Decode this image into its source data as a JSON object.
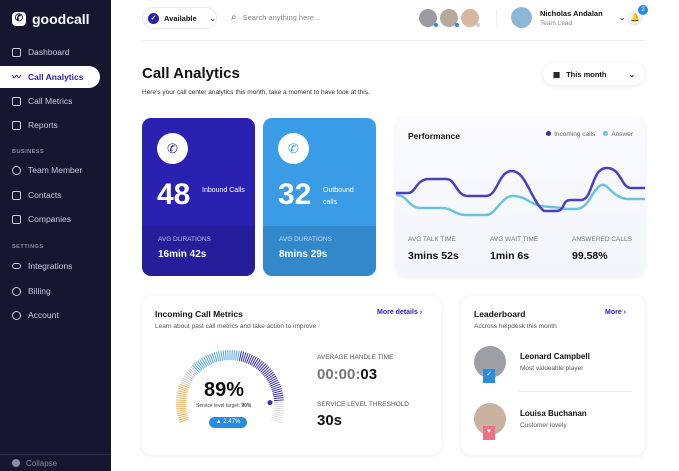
{
  "brand": {
    "name": "goodcall"
  },
  "sidebar": {
    "items": [
      {
        "label": "Dashboard"
      },
      {
        "label": "Call Analytics"
      },
      {
        "label": "Call Metrics"
      },
      {
        "label": "Reports"
      }
    ],
    "business_label": "BUSINESS",
    "business": [
      {
        "label": "Team Member"
      },
      {
        "label": "Contacts"
      },
      {
        "label": "Companies"
      }
    ],
    "settings_label": "SETTINGS",
    "settings": [
      {
        "label": "Integrations"
      },
      {
        "label": "Billing"
      },
      {
        "label": "Account"
      }
    ],
    "collapse": "Collapse"
  },
  "topbar": {
    "status": "Available",
    "search_placeholder": "Search anything here...",
    "user_name": "Nicholas Andalan",
    "user_role": "Team Lead",
    "notifications": "2"
  },
  "page": {
    "title": "Call Analytics",
    "subtitle": "Here's your call center analytics this month, take a moment to have look at this.",
    "period": "This month"
  },
  "inbound": {
    "count": "48",
    "label": "Inbound Calls",
    "avg_label": "AVG DURATIONS",
    "avg": "16min 42s",
    "color": "#2b21b0"
  },
  "outbound": {
    "count": "32",
    "label": "Outbound calls",
    "avg_label": "AVG DURATIONS",
    "avg": "8mins 29s",
    "color": "#3a9be6"
  },
  "performance": {
    "title": "Performance",
    "legend": [
      {
        "label": "Incoming calls",
        "color": "#3b2fb0"
      },
      {
        "label": "Answer",
        "color": "#6cc3e0"
      }
    ],
    "stats": [
      {
        "label": "AVG TALK TIME",
        "value": "3mins 52s"
      },
      {
        "label": "AVG WAIT TIME",
        "value": "1min 6s"
      },
      {
        "label": "ANSWERED CALLS",
        "value": "99.58%"
      }
    ]
  },
  "incoming": {
    "title": "Incoming Call Metrics",
    "subtitle": "Learn about past call metrics and take action to improve",
    "more": "More details ›",
    "percent": "89%",
    "percent_value": 89,
    "target_label": "Service level target:",
    "target": "90%",
    "delta": "▲ 2.47%",
    "aht_label": "AVERAGE HANDLE TIME",
    "aht_dim": "00:00:",
    "aht": "03",
    "slt_label": "SERVICE LEVEL THRESHOLD",
    "slt": "30s"
  },
  "leaderboard": {
    "title": "Leaderboard",
    "subtitle": "Accross helpdesk this month",
    "more": "More ›",
    "people": [
      {
        "name": "Leonard Campbell",
        "role": "Most valueable player"
      },
      {
        "name": "Louisa Buchanan",
        "role": "Customer lovely"
      }
    ]
  }
}
